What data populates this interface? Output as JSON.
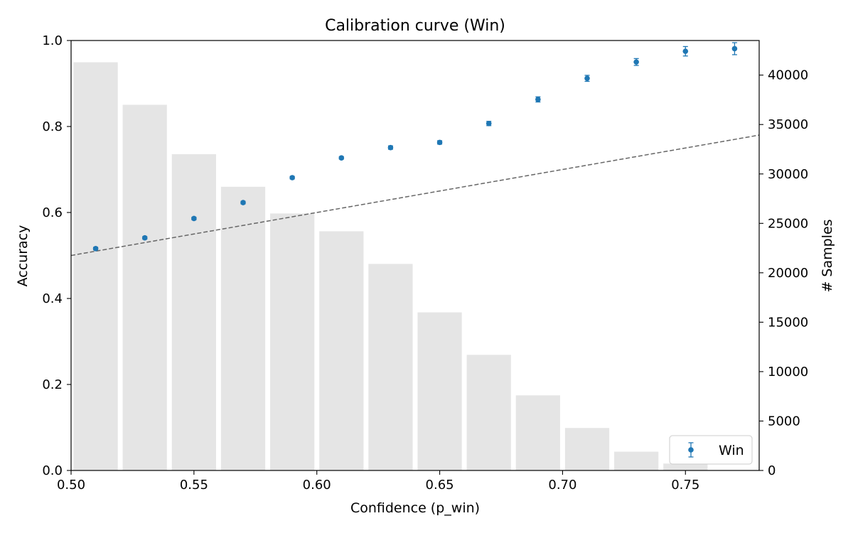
{
  "chart_data": {
    "type": "scatter",
    "title": "Calibration curve (Win)",
    "xlabel": "Confidence (p_win)",
    "ylabel": "Accuracy",
    "y2label": "# Samples",
    "xlim": [
      0.5,
      0.78
    ],
    "ylim": [
      0.0,
      1.0
    ],
    "y2lim": [
      0,
      43500
    ],
    "xticks": [
      0.5,
      0.55,
      0.6,
      0.65,
      0.7,
      0.75
    ],
    "xtick_labels": [
      "0.50",
      "0.55",
      "0.60",
      "0.65",
      "0.70",
      "0.75"
    ],
    "yticks": [
      0.0,
      0.2,
      0.4,
      0.6,
      0.8,
      1.0
    ],
    "ytick_labels": [
      "0.0",
      "0.2",
      "0.4",
      "0.6",
      "0.8",
      "1.0"
    ],
    "y2ticks": [
      0,
      5000,
      10000,
      15000,
      20000,
      25000,
      30000,
      35000,
      40000
    ],
    "y2tick_labels": [
      "0",
      "5000",
      "10000",
      "15000",
      "20000",
      "25000",
      "30000",
      "35000",
      "40000"
    ],
    "grid": false,
    "legend_position": "bottom-right",
    "legend": [
      "Win"
    ],
    "colors": {
      "points": "#1f77b4",
      "bars": "#e5e5e5",
      "reference_line": "#666666"
    },
    "reference_line": {
      "style": "dashed",
      "points": [
        [
          0.5,
          0.5
        ],
        [
          0.78,
          0.78
        ]
      ]
    },
    "histogram": {
      "axis": "right",
      "bin_width": 0.02,
      "bin_starts": [
        0.5,
        0.52,
        0.54,
        0.56,
        0.58,
        0.6,
        0.62,
        0.64,
        0.66,
        0.68,
        0.7,
        0.72,
        0.74
      ],
      "counts": [
        41300,
        37000,
        32000,
        28700,
        26000,
        24200,
        20900,
        16000,
        11700,
        7600,
        4300,
        1900,
        700
      ]
    },
    "series": [
      {
        "name": "Win",
        "x": [
          0.51,
          0.53,
          0.55,
          0.57,
          0.59,
          0.61,
          0.63,
          0.65,
          0.67,
          0.69,
          0.71,
          0.73,
          0.75,
          0.77
        ],
        "y": [
          0.516,
          0.541,
          0.586,
          0.623,
          0.681,
          0.727,
          0.751,
          0.763,
          0.807,
          0.863,
          0.912,
          0.95,
          0.975,
          0.981
        ],
        "yerr": [
          0.003,
          0.003,
          0.003,
          0.003,
          0.003,
          0.003,
          0.004,
          0.004,
          0.005,
          0.006,
          0.007,
          0.008,
          0.011,
          0.014
        ]
      }
    ]
  }
}
